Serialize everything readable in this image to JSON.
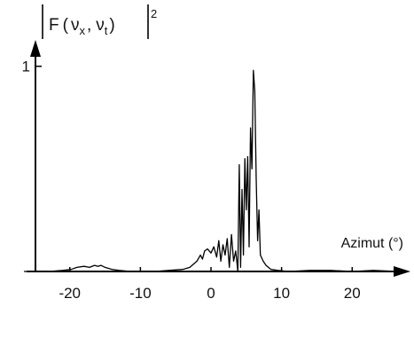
{
  "chart_data": {
    "type": "line",
    "title": "|F(ν_x, ν_t)|²",
    "title_parts": {
      "F": "F",
      "open": "(",
      "nu1": "ν",
      "sub1": "x",
      "comma": ",",
      "nu2": "ν",
      "sub2": "t",
      "close": ")",
      "exp": "2"
    },
    "xlabel": "Azimut (°)",
    "ylabel": "",
    "xlim": [
      -27,
      27
    ],
    "ylim": [
      0,
      1.15
    ],
    "x_ticks": [
      -20,
      -10,
      0,
      10,
      20
    ],
    "x_tick_labels": [
      "-20",
      "-10",
      "0",
      "10",
      "20"
    ],
    "y_ticks": [
      1
    ],
    "y_tick_labels": [
      "1"
    ],
    "grid": false,
    "legend": "none",
    "line_color": "#000000",
    "series": [
      {
        "x": [
          -26.5,
          -25,
          -23,
          -21,
          -19.8,
          -19,
          -18,
          -17.2,
          -16.5,
          -16,
          -15.6,
          -15,
          -14,
          -13,
          -12,
          -10,
          -8,
          -6,
          -4,
          -3,
          -2,
          -1.5,
          -1.2,
          -0.9,
          -0.5,
          0,
          0.4,
          0.8,
          1.1,
          1.4,
          1.7,
          2.0,
          2.3,
          2.6,
          2.9,
          3.2,
          3.5,
          3.8,
          4.0,
          4.2,
          4.4,
          4.6,
          4.8,
          5.0,
          5.2,
          5.4,
          5.6,
          5.8,
          6.0,
          6.2,
          6.4,
          6.6,
          6.8,
          7.0,
          7.4,
          7.8,
          8.5,
          9.5,
          11,
          14,
          17,
          20,
          23,
          26.5
        ],
        "y": [
          0.0,
          0.0,
          0.0,
          0.005,
          0.01,
          0.02,
          0.025,
          0.02,
          0.03,
          0.025,
          0.03,
          0.02,
          0.01,
          0.005,
          0.002,
          0.0,
          0.0,
          0.005,
          0.01,
          0.02,
          0.05,
          0.08,
          0.06,
          0.1,
          0.11,
          0.09,
          0.12,
          0.07,
          0.15,
          0.05,
          0.13,
          0.08,
          0.16,
          0.02,
          0.18,
          0.05,
          0.1,
          0.0,
          0.52,
          0.02,
          0.4,
          0.08,
          0.55,
          0.3,
          0.56,
          0.12,
          0.7,
          0.5,
          0.98,
          0.88,
          0.45,
          0.15,
          0.3,
          0.08,
          0.05,
          0.03,
          0.01,
          0.005,
          0.0,
          0.005,
          0.005,
          0.0,
          0.005,
          0.0
        ]
      }
    ]
  }
}
